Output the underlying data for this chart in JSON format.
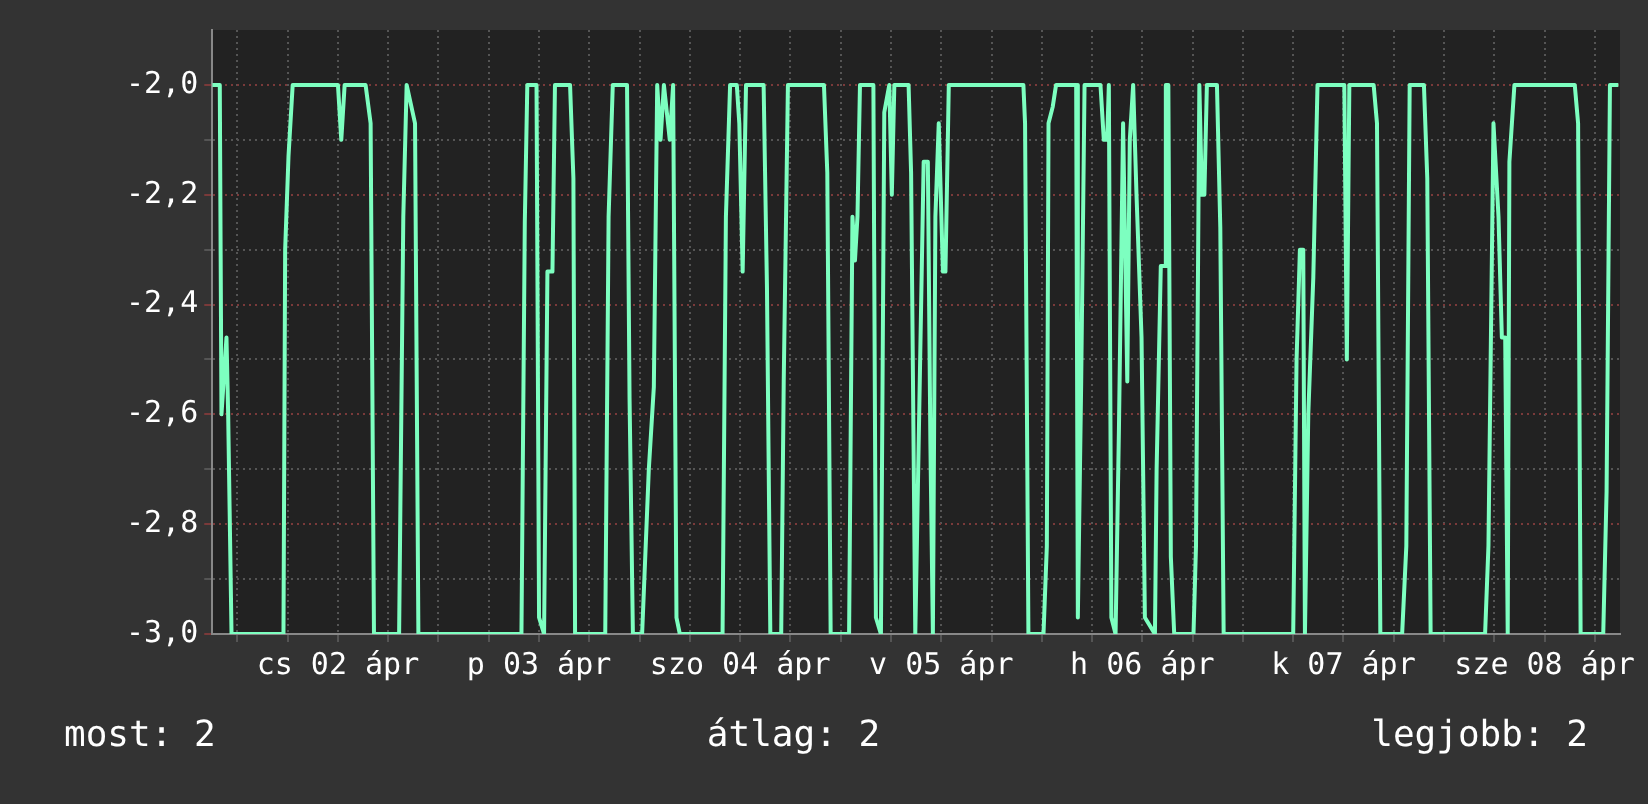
{
  "chart_data": {
    "type": "line",
    "marker": "none",
    "grid": true,
    "x": [
      "--04-01T21:00",
      "--04-01T21:54",
      "--04-01T22:06",
      "--04-01T22:42",
      "--04-01T22:54",
      "--04-01T23:18",
      "--04-02T05:30",
      "--04-02T05:42",
      "--04-02T06:06",
      "--04-02T06:36",
      "--04-02T12:00",
      "--04-02T12:24",
      "--04-02T12:48",
      "--04-02T15:18",
      "--04-02T15:54",
      "--04-02T16:18",
      "--04-02T19:18",
      "--04-02T19:48",
      "--04-02T20:12",
      "--04-02T21:12",
      "--04-02T21:36",
      "--04-03T09:54",
      "--04-03T10:18",
      "--04-03T10:36",
      "--04-03T11:42",
      "--04-03T12:00",
      "--04-03T12:36",
      "--04-03T13:00",
      "--04-03T13:36",
      "--04-03T13:54",
      "--04-03T15:42",
      "--04-03T16:06",
      "--04-03T16:18",
      "--04-03T19:54",
      "--04-03T20:18",
      "--04-03T20:48",
      "--04-03T22:30",
      "--04-03T22:48",
      "--04-03T23:12",
      "--04-04T00:18",
      "--04-04T01:06",
      "--04-04T01:42",
      "--04-04T02:06",
      "--04-04T02:30",
      "--04-04T02:54",
      "--04-04T03:36",
      "--04-04T04:00",
      "--04-04T04:24",
      "--04-04T04:48",
      "--04-04T09:54",
      "--04-04T10:18",
      "--04-04T10:48",
      "--04-04T11:36",
      "--04-04T11:54",
      "--04-04T12:18",
      "--04-04T12:42",
      "--04-04T14:48",
      "--04-04T15:12",
      "--04-04T15:36",
      "--04-04T16:54",
      "--04-04T17:12",
      "--04-04T17:42",
      "--04-04T22:00",
      "--04-04T22:24",
      "--04-04T22:48",
      "--04-05T01:00",
      "--04-05T01:24",
      "--04-05T01:42",
      "--04-05T02:00",
      "--04-05T02:18",
      "--04-05T03:54",
      "--04-05T04:12",
      "--04-05T04:48",
      "--04-05T05:12",
      "--04-05T05:48",
      "--04-05T06:06",
      "--04-05T06:24",
      "--04-05T08:06",
      "--04-05T08:24",
      "--04-05T08:54",
      "--04-05T09:54",
      "--04-05T10:24",
      "--04-05T10:42",
      "--04-05T11:00",
      "--04-05T11:18",
      "--04-05T11:42",
      "--04-05T12:12",
      "--04-05T12:30",
      "--04-05T12:54",
      "--04-05T21:48",
      "--04-05T22:00",
      "--04-05T22:24",
      "--04-06T00:12",
      "--04-06T00:36",
      "--04-06T00:48",
      "--04-06T01:18",
      "--04-06T01:42",
      "--04-06T04:06",
      "--04-06T04:18",
      "--04-06T04:42",
      "--04-06T05:06",
      "--04-06T07:00",
      "--04-06T07:24",
      "--04-06T07:48",
      "--04-06T08:00",
      "--04-06T08:18",
      "--04-06T08:48",
      "--04-06T09:12",
      "--04-06T09:42",
      "--04-06T10:12",
      "--04-06T10:30",
      "--04-06T10:54",
      "--04-06T11:18",
      "--04-06T11:54",
      "--04-06T12:18",
      "--04-06T13:30",
      "--04-06T13:42",
      "--04-06T14:12",
      "--04-06T14:36",
      "--04-06T14:48",
      "--04-06T15:06",
      "--04-06T15:24",
      "--04-06T15:48",
      "--04-06T18:06",
      "--04-06T18:24",
      "--04-06T18:48",
      "--04-06T19:06",
      "--04-06T19:24",
      "--04-06T19:42",
      "--04-06T20:54",
      "--04-06T21:18",
      "--04-06T21:42",
      "--04-07T06:00",
      "--04-07T06:24",
      "--04-07T06:48",
      "--04-07T07:12",
      "--04-07T07:24",
      "--04-07T07:48",
      "--04-07T08:24",
      "--04-07T08:54",
      "--04-07T12:06",
      "--04-07T12:24",
      "--04-07T12:42",
      "--04-07T15:36",
      "--04-07T16:00",
      "--04-07T16:24",
      "--04-07T19:00",
      "--04-07T19:30",
      "--04-07T19:54",
      "--04-07T21:36",
      "--04-07T22:00",
      "--04-07T22:24",
      "--04-08T04:54",
      "--04-08T05:18",
      "--04-08T05:54",
      "--04-08T06:30",
      "--04-08T06:54",
      "--04-08T07:18",
      "--04-08T07:36",
      "--04-08T07:48",
      "--04-08T08:24",
      "--04-08T15:36",
      "--04-08T16:00",
      "--04-08T16:18",
      "--04-08T19:00",
      "--04-08T19:24",
      "--04-08T19:48",
      "--04-08T20:48"
    ],
    "values": [
      -2,
      -2,
      -2.6,
      -2.46,
      -2.6,
      -3,
      -3,
      -2.3,
      -2.13,
      -2,
      -2,
      -2.1,
      -2,
      -2,
      -2.07,
      -3,
      -3,
      -2.24,
      -2,
      -2.07,
      -3,
      -3,
      -2.25,
      -2,
      -2,
      -2.97,
      -3,
      -2.34,
      -2.34,
      -2,
      -2,
      -2.17,
      -3,
      -3,
      -2.24,
      -2,
      -2,
      -2.57,
      -3,
      -3,
      -2.7,
      -2.55,
      -2,
      -2.1,
      -2,
      -2.1,
      -2,
      -2.97,
      -3,
      -3,
      -2.24,
      -2,
      -2,
      -2.07,
      -2.34,
      -2,
      -2,
      -2.37,
      -3,
      -3,
      -2.54,
      -2,
      -2,
      -2.16,
      -3,
      -3,
      -2.24,
      -2.32,
      -2.24,
      -2,
      -2,
      -2.97,
      -3,
      -2.05,
      -2,
      -2.2,
      -2,
      -2,
      -2.16,
      -3,
      -2.14,
      -2.14,
      -2.65,
      -3,
      -2.24,
      -2.07,
      -2.34,
      -2.34,
      -2,
      -2,
      -2.07,
      -3,
      -3,
      -2.84,
      -2.07,
      -2.04,
      -2,
      -2,
      -2.97,
      -2.54,
      -2,
      -2,
      -2.1,
      -2.1,
      -2,
      -2.97,
      -3,
      -2.63,
      -2.07,
      -2.54,
      -2.1,
      -2,
      -2.2,
      -2.46,
      -2.97,
      -3,
      -2.7,
      -2.33,
      -2.33,
      -2,
      -2,
      -2.86,
      -3,
      -3,
      -2.84,
      -2,
      -2.2,
      -2.2,
      -2,
      -2,
      -2.26,
      -3,
      -3,
      -2.5,
      -2.3,
      -2.3,
      -3,
      -2.6,
      -2.35,
      -2,
      -2,
      -2.5,
      -2,
      -2,
      -2.07,
      -3,
      -3,
      -2.84,
      -2,
      -2,
      -2.17,
      -3,
      -3,
      -2.84,
      -2.07,
      -2.24,
      -2.46,
      -2.46,
      -3,
      -2.14,
      -2,
      -2,
      -2.07,
      -3,
      -3,
      -2.74,
      -2,
      -2
    ],
    "color": "#7dffc0",
    "xlim": [
      "--04-01T21:00",
      "--04-08T21:00"
    ],
    "xticks": [
      {
        "value": "--04-02T00:00",
        "label": null
      },
      {
        "value": "--04-02T06:00",
        "label": null
      },
      {
        "value": "--04-02T12:00",
        "label": "cs 02 ápr"
      },
      {
        "value": "--04-02T18:00",
        "label": null
      },
      {
        "value": "--04-03T00:00",
        "label": null
      },
      {
        "value": "--04-03T06:00",
        "label": null
      },
      {
        "value": "--04-03T12:00",
        "label": "p 03 ápr"
      },
      {
        "value": "--04-03T18:00",
        "label": null
      },
      {
        "value": "--04-04T00:00",
        "label": null
      },
      {
        "value": "--04-04T06:00",
        "label": null
      },
      {
        "value": "--04-04T12:00",
        "label": "szo 04 ápr"
      },
      {
        "value": "--04-04T18:00",
        "label": null
      },
      {
        "value": "--04-05T00:00",
        "label": null
      },
      {
        "value": "--04-05T06:00",
        "label": null
      },
      {
        "value": "--04-05T12:00",
        "label": "v 05 ápr"
      },
      {
        "value": "--04-05T18:00",
        "label": null
      },
      {
        "value": "--04-06T00:00",
        "label": null
      },
      {
        "value": "--04-06T06:00",
        "label": null
      },
      {
        "value": "--04-06T12:00",
        "label": "h 06 ápr"
      },
      {
        "value": "--04-06T18:00",
        "label": null
      },
      {
        "value": "--04-07T00:00",
        "label": null
      },
      {
        "value": "--04-07T06:00",
        "label": null
      },
      {
        "value": "--04-07T12:00",
        "label": "k 07 ápr"
      },
      {
        "value": "--04-07T18:00",
        "label": null
      },
      {
        "value": "--04-08T00:00",
        "label": null
      },
      {
        "value": "--04-08T06:00",
        "label": null
      },
      {
        "value": "--04-08T12:00",
        "label": "sze 08 ápr"
      },
      {
        "value": "--04-08T18:00",
        "label": null
      }
    ],
    "ylim": [
      -3,
      -1.9
    ],
    "yticks": [
      {
        "value": -3,
        "label": "-3,0"
      },
      {
        "value": -2.9,
        "label": null
      },
      {
        "value": -2.8,
        "label": "-2,8"
      },
      {
        "value": -2.7,
        "label": null
      },
      {
        "value": -2.6,
        "label": "-2,6"
      },
      {
        "value": -2.5,
        "label": null
      },
      {
        "value": -2.4,
        "label": "-2,4"
      },
      {
        "value": -2.3,
        "label": null
      },
      {
        "value": -2.2,
        "label": "-2,2"
      },
      {
        "value": -2.1,
        "label": null
      },
      {
        "value": -2,
        "label": "-2,0"
      }
    ],
    "annotations": [
      "most: 2",
      "átlag: 2",
      "legjobb: 2"
    ]
  }
}
